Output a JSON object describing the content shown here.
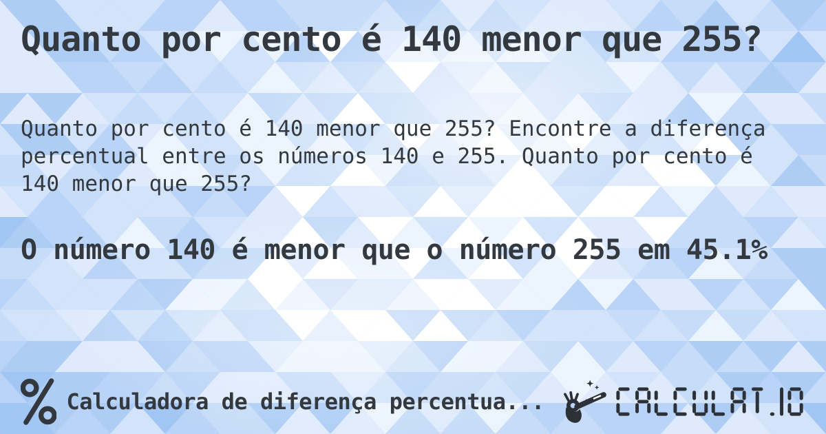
{
  "card": {
    "title": "Quanto por cento é 140 menor que 255?",
    "description": "Quanto por cento é 140 menor que 255? Encontre a diferença percentual entre os números 140 e 255. Quanto por cento é 140 menor que 255?",
    "answer": "O número 140 é menor que o número 255 em 45.1%"
  },
  "footer": {
    "percent_icon": "percent-icon",
    "category_label": "Calculadora de diferença percentua...",
    "logo": {
      "icon": "hand-magic-wand-icon",
      "wordmark": "CALCULAT.IO"
    }
  },
  "colors": {
    "text": "#34393f",
    "logo": "#2c3137",
    "background_base": "#c0d7f7",
    "mosaic_palette": [
      "#a2c6f3",
      "#aecdf5",
      "#bad4f7",
      "#c6dcf8",
      "#d2e3fa",
      "#dfebfc",
      "#ecf4fe",
      "#ffffff"
    ]
  }
}
